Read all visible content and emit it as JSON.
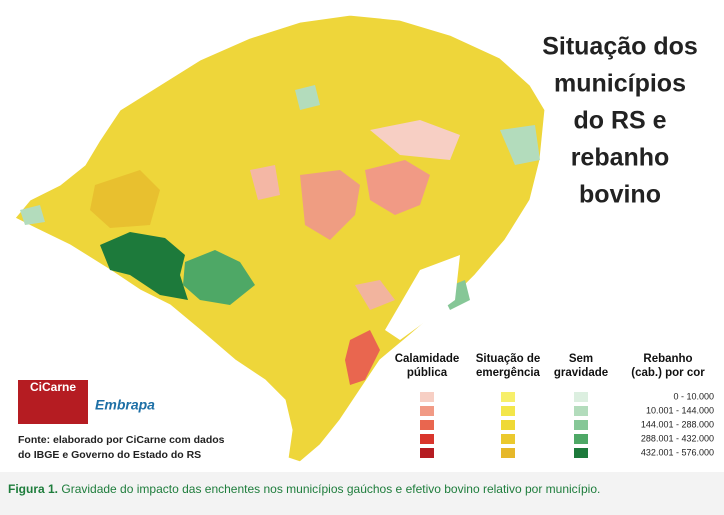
{
  "title": [
    "Situação dos",
    "municípios",
    "do RS e",
    "rebanho",
    "bovino"
  ],
  "legend": {
    "columns": [
      {
        "label": [
          "Calamidade",
          "pública"
        ],
        "colors": [
          "#f7cfc4",
          "#f19a85",
          "#e9664f",
          "#d9352c",
          "#b51c22"
        ]
      },
      {
        "label": [
          "Situação de",
          "emergência"
        ],
        "colors": [
          "#f7ef6a",
          "#f3e64a",
          "#efd935",
          "#ebc92e",
          "#e6b82a"
        ]
      },
      {
        "label": [
          "Sem",
          "gravidade"
        ],
        "colors": [
          "#dcefe0",
          "#b3dcbc",
          "#86c797",
          "#4ea866",
          "#1d7a3b"
        ]
      }
    ],
    "ranges_header": [
      "Rebanho",
      "(cab.) por cor"
    ],
    "ranges": [
      "0 - 10.000",
      "10.001 - 144.000",
      "144.001 - 288.000",
      "288.001 - 432.000",
      "432.001 - 576.000"
    ]
  },
  "logos": [
    "CiCarne",
    "Embrapa"
  ],
  "source": [
    "Fonte: elaborado por CiCarne com dados",
    "do IBGE e Governo do Estado do RS"
  ],
  "caption": {
    "label": "Figura 1.",
    "text": "Gravidade do impacto das enchentes nos municípios gaúchos e efetivo bovino relativo por município."
  }
}
